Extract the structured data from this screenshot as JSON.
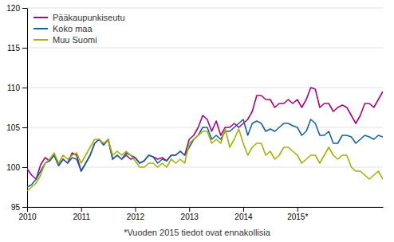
{
  "chart_data": {
    "type": "line",
    "xlabel": "*Vuoden 2015 tiedot ovat ennakollisia",
    "x": [
      2010,
      2010.0833,
      2010.1667,
      2010.25,
      2010.3333,
      2010.4167,
      2010.5,
      2010.5833,
      2010.6667,
      2010.75,
      2010.8333,
      2010.9167,
      2011,
      2011.0833,
      2011.1667,
      2011.25,
      2011.3333,
      2011.4167,
      2011.5,
      2011.5833,
      2011.6667,
      2011.75,
      2011.8333,
      2011.9167,
      2012,
      2012.0833,
      2012.1667,
      2012.25,
      2012.3333,
      2012.4167,
      2012.5,
      2012.5833,
      2012.6667,
      2012.75,
      2012.8333,
      2012.9167,
      2013,
      2013.0833,
      2013.1667,
      2013.25,
      2013.3333,
      2013.4167,
      2013.5,
      2013.5833,
      2013.6667,
      2013.75,
      2013.8333,
      2013.9167,
      2014,
      2014.0833,
      2014.1667,
      2014.25,
      2014.3333,
      2014.4167,
      2014.5,
      2014.5833,
      2014.6667,
      2014.75,
      2014.8333,
      2014.9167,
      2015,
      2015.0833,
      2015.1667,
      2015.25,
      2015.3333,
      2015.4167,
      2015.5,
      2015.5833,
      2015.6667,
      2015.75,
      2015.8333,
      2015.9167,
      2016,
      2016.0833,
      2016.1667,
      2016.25,
      2016.3333,
      2016.4167,
      2016.5,
      2016.5833
    ],
    "series": [
      {
        "name": "Pääkaupunkiseutu",
        "color": "#b0007d",
        "values": [
          99.8,
          99.0,
          98.5,
          100.3,
          101.2,
          100.8,
          101.5,
          100.2,
          101.0,
          100.5,
          101.8,
          101.5,
          99.5,
          100.5,
          101.5,
          103.0,
          103.5,
          102.8,
          103.5,
          101.0,
          101.5,
          101.0,
          101.5,
          101.0,
          101.2,
          100.5,
          100.8,
          101.5,
          101.3,
          101.0,
          101.2,
          100.8,
          101.5,
          101.5,
          102.0,
          101.5,
          103.5,
          104.0,
          105.0,
          106.5,
          106.0,
          104.5,
          105.8,
          104.0,
          105.0,
          105.0,
          105.5,
          105.0,
          105.5,
          106.0,
          107.0,
          109.0,
          109.0,
          108.5,
          108.5,
          107.5,
          108.0,
          108.0,
          108.5,
          108.0,
          108.5,
          107.5,
          108.5,
          110.0,
          109.8,
          107.5,
          108.0,
          108.0,
          107.0,
          107.5,
          107.8,
          107.5,
          106.5,
          105.5,
          106.5,
          108.0,
          108.0,
          107.5,
          108.5,
          109.5
        ]
      },
      {
        "name": "Koko maa",
        "color": "#1464a0",
        "values": [
          97.5,
          97.8,
          98.5,
          99.5,
          100.5,
          100.8,
          101.5,
          100.2,
          101.0,
          100.5,
          101.2,
          101.0,
          99.5,
          100.5,
          101.5,
          103.0,
          103.5,
          102.8,
          103.5,
          101.0,
          101.5,
          101.0,
          101.8,
          101.5,
          101.2,
          100.5,
          100.8,
          101.5,
          101.3,
          100.5,
          101.0,
          100.8,
          101.5,
          101.5,
          102.0,
          101.5,
          102.5,
          103.5,
          104.0,
          105.0,
          105.0,
          103.5,
          104.0,
          103.5,
          104.5,
          104.5,
          105.0,
          105.5,
          106.0,
          104.0,
          105.5,
          105.8,
          105.5,
          104.5,
          104.8,
          104.5,
          105.0,
          105.5,
          105.5,
          105.2,
          105.0,
          104.0,
          104.5,
          106.0,
          105.5,
          104.0,
          104.0,
          104.5,
          103.0,
          103.0,
          104.0,
          104.0,
          103.8,
          103.0,
          103.5,
          104.0,
          103.8,
          103.5,
          104.0,
          103.8
        ]
      },
      {
        "name": "Muu Suomi",
        "color": "#a0b400",
        "values": [
          97.0,
          97.5,
          98.0,
          99.0,
          100.5,
          101.0,
          101.8,
          100.5,
          101.5,
          101.0,
          101.5,
          101.8,
          100.5,
          101.5,
          102.5,
          103.5,
          103.5,
          103.0,
          103.5,
          101.5,
          102.0,
          101.5,
          102.0,
          101.5,
          100.8,
          100.0,
          100.0,
          100.5,
          100.5,
          100.0,
          100.5,
          100.0,
          101.0,
          100.5,
          101.0,
          100.5,
          103.0,
          103.5,
          104.0,
          104.5,
          104.5,
          103.0,
          103.5,
          103.0,
          104.8,
          102.5,
          103.5,
          104.8,
          103.0,
          101.5,
          102.5,
          103.0,
          103.0,
          101.5,
          102.0,
          101.0,
          101.5,
          102.5,
          102.5,
          102.0,
          101.5,
          100.5,
          101.0,
          101.5,
          101.5,
          100.5,
          101.5,
          102.5,
          101.5,
          101.0,
          101.5,
          101.5,
          100.0,
          99.5,
          99.5,
          99.0,
          98.5,
          99.0,
          99.5,
          98.5
        ]
      }
    ],
    "xlim": [
      2010,
      2016.5833
    ],
    "xticks": [
      2010,
      2011,
      2012,
      2013,
      2014,
      {
        "value": 2015,
        "label": "2015*"
      }
    ],
    "ylim": [
      95,
      120
    ],
    "yticks": [
      95,
      100,
      105,
      110,
      115,
      120
    ],
    "grid": true,
    "legend": "upper left"
  }
}
